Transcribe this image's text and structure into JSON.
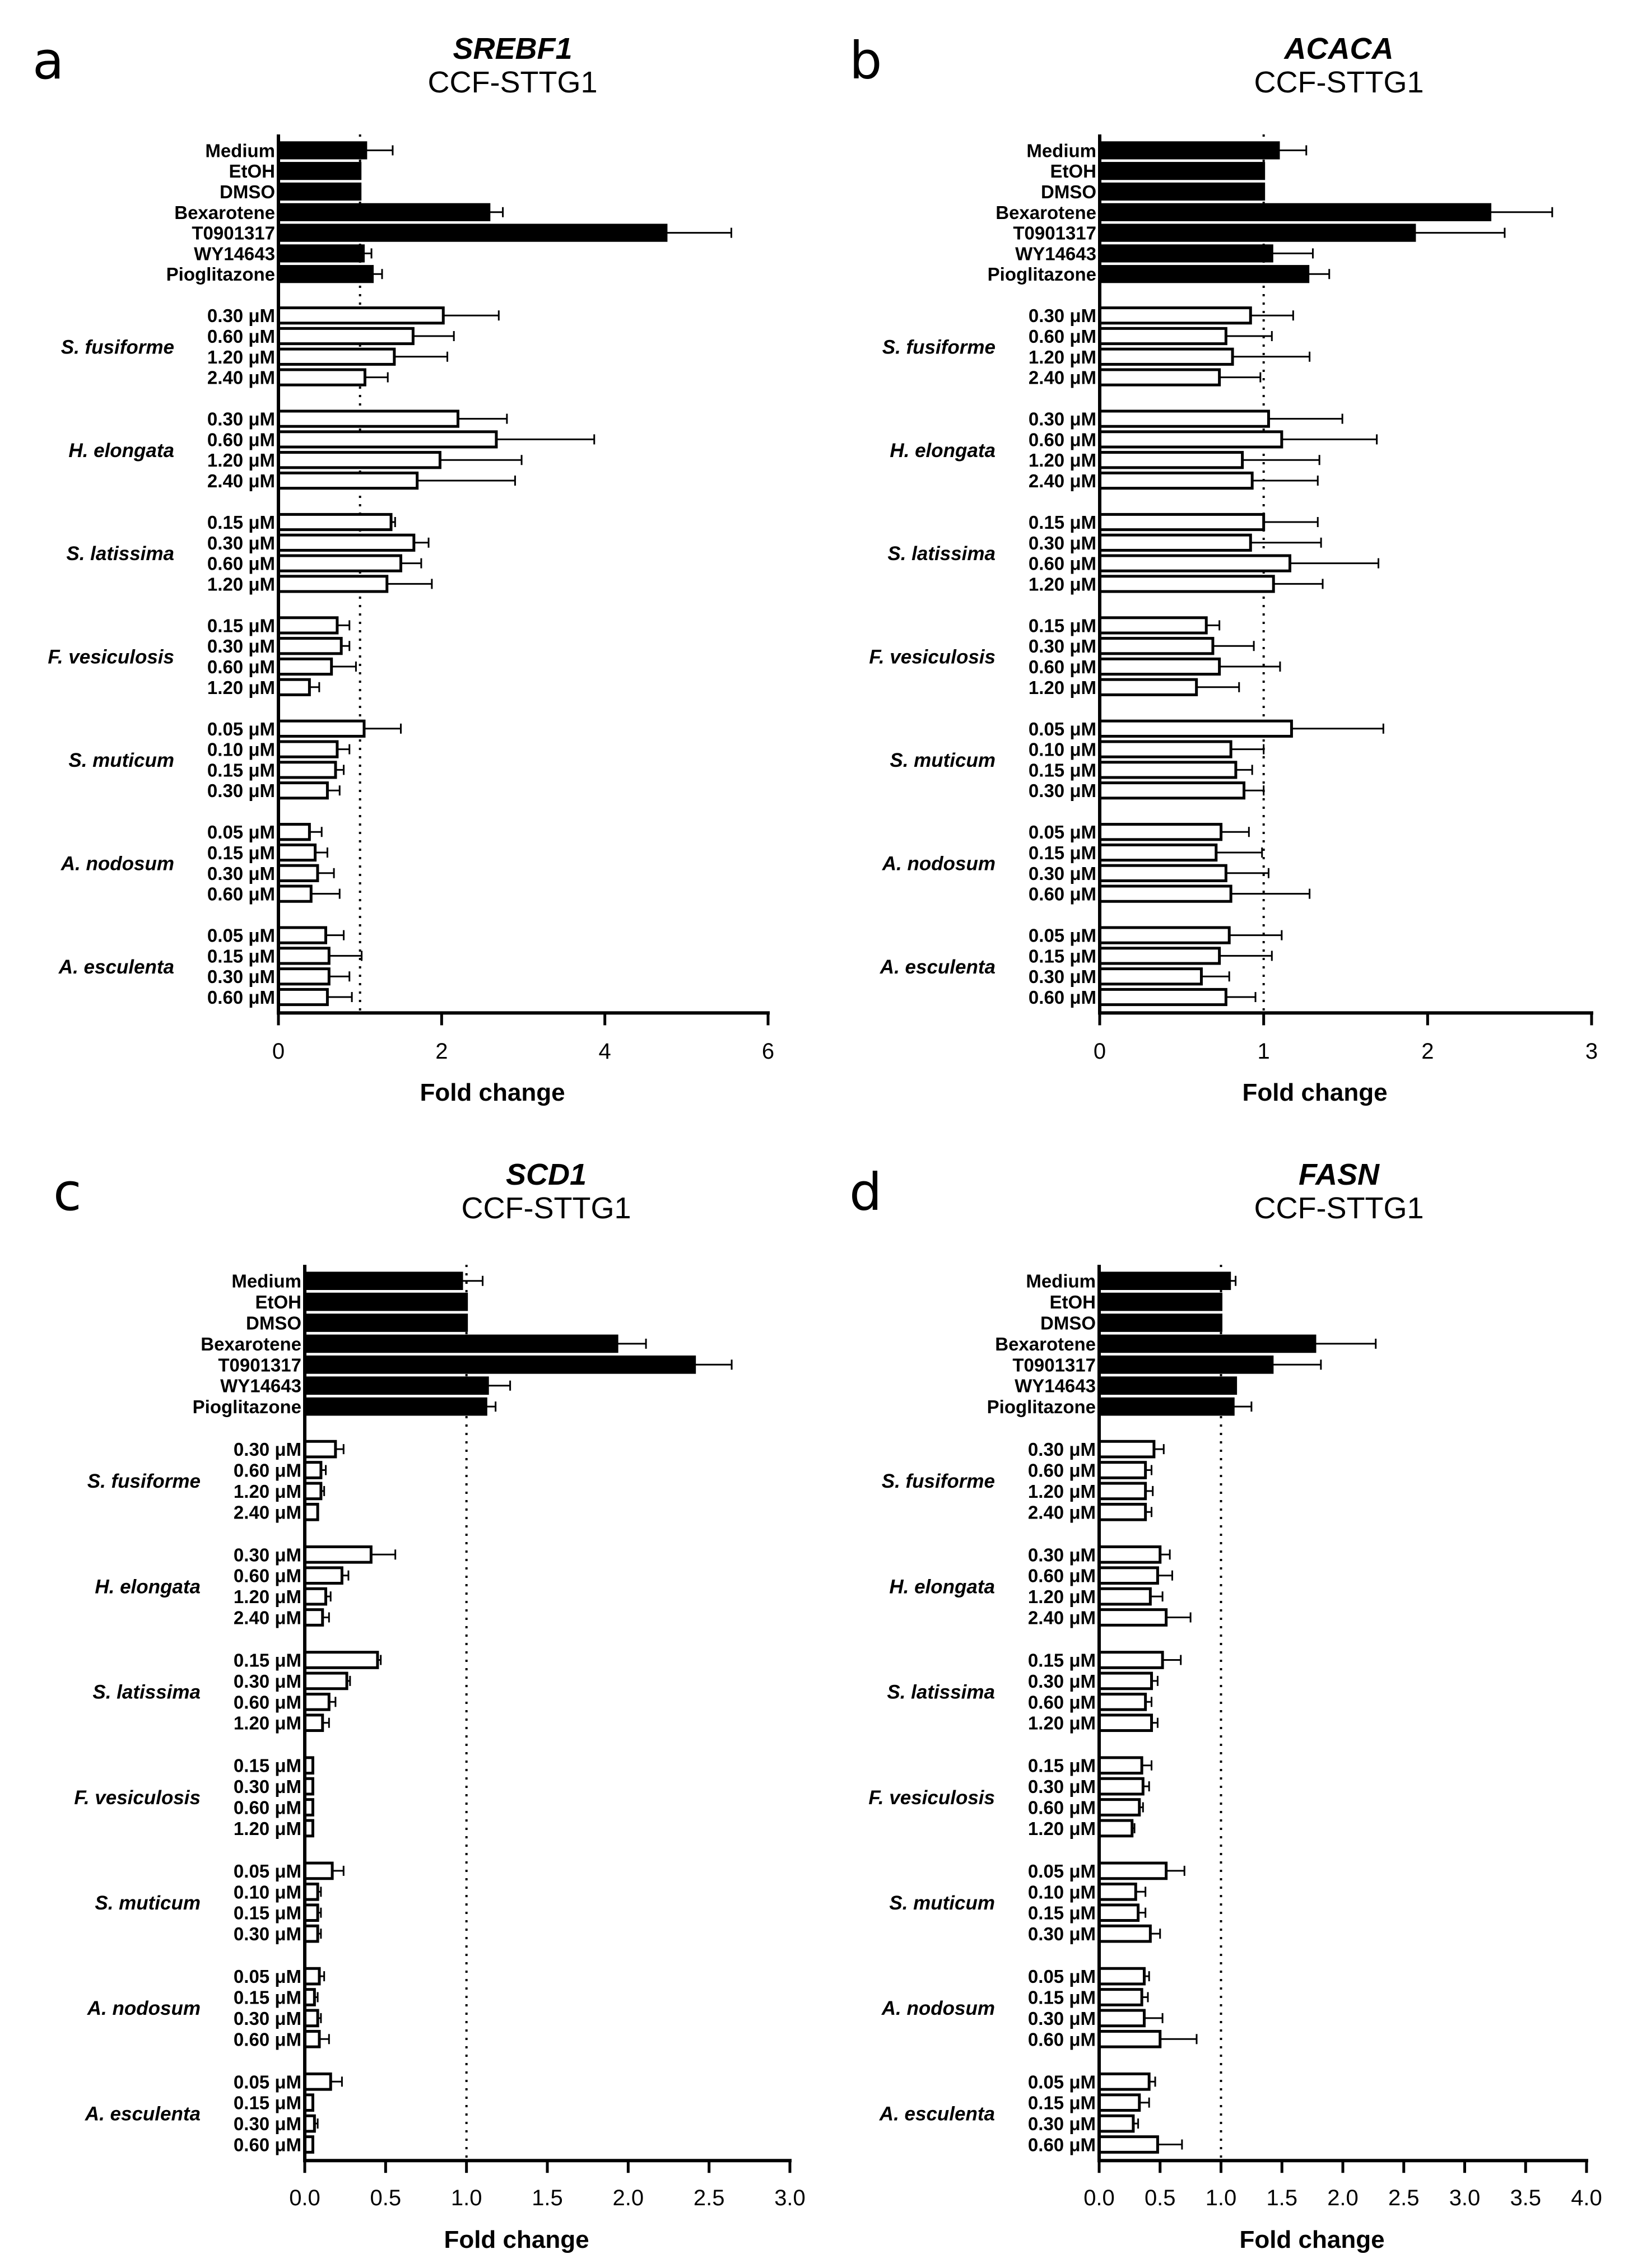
{
  "figure": {
    "cell_line": "CCF-STTG1",
    "treatment_labels": [
      "Medium",
      "EtOH",
      "DMSO",
      "Bexarotene",
      "T0901317",
      "WY14643",
      "Pioglitazone"
    ],
    "groups": [
      {
        "name": "S. fusiforme",
        "doses": [
          "0.30 μM",
          "0.60 μM",
          "1.20 μM",
          "2.40 μM"
        ]
      },
      {
        "name": "H. elongata",
        "doses": [
          "0.30 μM",
          "0.60 μM",
          "1.20 μM",
          "2.40 μM"
        ]
      },
      {
        "name": "S. latissima",
        "doses": [
          "0.15 μM",
          "0.30 μM",
          "0.60 μM",
          "1.20 μM"
        ]
      },
      {
        "name": "F. vesiculosis",
        "doses": [
          "0.15 μM",
          "0.30 μM",
          "0.60 μM",
          "1.20 μM"
        ]
      },
      {
        "name": "S. muticum",
        "doses": [
          "0.05 μM",
          "0.10 μM",
          "0.15 μM",
          "0.30 μM"
        ]
      },
      {
        "name": "A. nodosum",
        "doses": [
          "0.05 μM",
          "0.15 μM",
          "0.30 μM",
          "0.60 μM"
        ]
      },
      {
        "name": "A. esculenta",
        "doses": [
          "0.05 μM",
          "0.15 μM",
          "0.30 μM",
          "0.60 μM"
        ]
      }
    ],
    "colors": {
      "control_fill": "#000000",
      "treated_fill": "#ffffff",
      "stroke": "#000000"
    }
  },
  "chart_data": [
    {
      "panel": "a",
      "type": "bar",
      "orientation": "horizontal",
      "title": "SREBF1",
      "subtitle": "CCF-STTG1",
      "xlabel": "Fold change",
      "xlim": [
        0,
        6
      ],
      "xticks": [
        0,
        2,
        4,
        6
      ],
      "xtick_labels": [
        "0",
        "2",
        "4",
        "6"
      ],
      "reference_line": 1,
      "controls": {
        "values": [
          1.07,
          1.0,
          1.0,
          2.58,
          4.75,
          1.04,
          1.15
        ],
        "errors": [
          0.33,
          0.0,
          0.0,
          0.17,
          0.8,
          0.1,
          0.12
        ]
      },
      "groups": [
        {
          "values": [
            2.02,
            1.65,
            1.42,
            1.06
          ],
          "errors": [
            0.68,
            0.5,
            0.65,
            0.28
          ]
        },
        {
          "values": [
            2.2,
            2.67,
            1.98,
            1.7
          ],
          "errors": [
            0.6,
            1.2,
            1.0,
            1.2
          ]
        },
        {
          "values": [
            1.38,
            1.66,
            1.5,
            1.33
          ],
          "errors": [
            0.05,
            0.18,
            0.25,
            0.55
          ]
        },
        {
          "values": [
            0.72,
            0.77,
            0.65,
            0.38
          ],
          "errors": [
            0.15,
            0.1,
            0.3,
            0.12
          ]
        },
        {
          "values": [
            1.05,
            0.72,
            0.7,
            0.6
          ],
          "errors": [
            0.45,
            0.15,
            0.1,
            0.15
          ]
        },
        {
          "values": [
            0.38,
            0.45,
            0.48,
            0.4
          ],
          "errors": [
            0.15,
            0.15,
            0.2,
            0.35
          ]
        },
        {
          "values": [
            0.58,
            0.62,
            0.62,
            0.6
          ],
          "errors": [
            0.22,
            0.4,
            0.25,
            0.3
          ]
        }
      ]
    },
    {
      "panel": "b",
      "type": "bar",
      "orientation": "horizontal",
      "title": "ACACA",
      "subtitle": "CCF-STTG1",
      "xlabel": "Fold change",
      "xlim": [
        0,
        3
      ],
      "xticks": [
        0,
        1,
        2,
        3
      ],
      "xtick_labels": [
        "0",
        "1",
        "2",
        "3"
      ],
      "reference_line": 1,
      "controls": {
        "values": [
          1.09,
          1.0,
          1.0,
          2.38,
          1.92,
          1.05,
          1.27
        ],
        "errors": [
          0.17,
          0.0,
          0.0,
          0.38,
          0.55,
          0.25,
          0.13
        ]
      },
      "groups": [
        {
          "values": [
            0.92,
            0.77,
            0.81,
            0.73
          ],
          "errors": [
            0.26,
            0.28,
            0.47,
            0.25
          ]
        },
        {
          "values": [
            1.03,
            1.11,
            0.87,
            0.93
          ],
          "errors": [
            0.45,
            0.58,
            0.47,
            0.4
          ]
        },
        {
          "values": [
            1.0,
            0.92,
            1.16,
            1.06
          ],
          "errors": [
            0.33,
            0.43,
            0.54,
            0.3
          ]
        },
        {
          "values": [
            0.65,
            0.69,
            0.73,
            0.59
          ],
          "errors": [
            0.08,
            0.25,
            0.37,
            0.26
          ]
        },
        {
          "values": [
            1.17,
            0.8,
            0.83,
            0.88
          ],
          "errors": [
            0.56,
            0.2,
            0.1,
            0.12
          ]
        },
        {
          "values": [
            0.74,
            0.71,
            0.77,
            0.8
          ],
          "errors": [
            0.17,
            0.28,
            0.26,
            0.48
          ]
        },
        {
          "values": [
            0.79,
            0.73,
            0.62,
            0.77
          ],
          "errors": [
            0.32,
            0.32,
            0.17,
            0.18
          ]
        }
      ]
    },
    {
      "panel": "c",
      "type": "bar",
      "orientation": "horizontal",
      "title": "SCD1",
      "subtitle": "CCF-STTG1",
      "xlabel": "Fold change",
      "xlim": [
        0,
        3
      ],
      "xticks": [
        0,
        0.5,
        1,
        1.5,
        2,
        2.5,
        3
      ],
      "xtick_labels": [
        "0.0",
        "0.5",
        "1.0",
        "1.5",
        "2.0",
        "2.5",
        "3.0"
      ],
      "reference_line": 1,
      "controls": {
        "values": [
          0.97,
          1.0,
          1.0,
          1.93,
          2.41,
          1.13,
          1.12
        ],
        "errors": [
          0.13,
          0.0,
          0.0,
          0.18,
          0.23,
          0.14,
          0.06
        ]
      },
      "groups": [
        {
          "values": [
            0.19,
            0.1,
            0.1,
            0.08
          ],
          "errors": [
            0.05,
            0.03,
            0.02,
            0.0
          ]
        },
        {
          "values": [
            0.41,
            0.23,
            0.13,
            0.11
          ],
          "errors": [
            0.15,
            0.04,
            0.03,
            0.04
          ]
        },
        {
          "values": [
            0.45,
            0.26,
            0.15,
            0.11
          ],
          "errors": [
            0.02,
            0.02,
            0.04,
            0.04
          ]
        },
        {
          "values": [
            0.05,
            0.05,
            0.05,
            0.05
          ],
          "errors": [
            0.0,
            0.0,
            0.0,
            0.0
          ]
        },
        {
          "values": [
            0.17,
            0.08,
            0.08,
            0.08
          ],
          "errors": [
            0.07,
            0.02,
            0.02,
            0.02
          ]
        },
        {
          "values": [
            0.09,
            0.06,
            0.08,
            0.09
          ],
          "errors": [
            0.03,
            0.02,
            0.02,
            0.06
          ]
        },
        {
          "values": [
            0.16,
            0.05,
            0.06,
            0.05
          ],
          "errors": [
            0.07,
            0.0,
            0.02,
            0.0
          ]
        }
      ]
    },
    {
      "panel": "d",
      "type": "bar",
      "orientation": "horizontal",
      "title": "FASN",
      "subtitle": "CCF-STTG1",
      "xlabel": "Fold change",
      "xlim": [
        0,
        4
      ],
      "xticks": [
        0,
        0.5,
        1,
        1.5,
        2,
        2.5,
        3,
        3.5,
        4
      ],
      "xtick_labels": [
        "0.0",
        "0.5",
        "1.0",
        "1.5",
        "2.0",
        "2.5",
        "3.0",
        "3.5",
        "4.0"
      ],
      "reference_line": 1,
      "controls": {
        "values": [
          1.07,
          1.0,
          1.0,
          1.77,
          1.42,
          1.12,
          1.1
        ],
        "errors": [
          0.05,
          0.0,
          0.0,
          0.5,
          0.4,
          0.0,
          0.15
        ]
      },
      "groups": [
        {
          "values": [
            0.45,
            0.38,
            0.38,
            0.38
          ],
          "errors": [
            0.08,
            0.05,
            0.06,
            0.05
          ]
        },
        {
          "values": [
            0.5,
            0.48,
            0.42,
            0.55
          ],
          "errors": [
            0.08,
            0.12,
            0.1,
            0.2
          ]
        },
        {
          "values": [
            0.52,
            0.43,
            0.38,
            0.43
          ],
          "errors": [
            0.15,
            0.05,
            0.05,
            0.05
          ]
        },
        {
          "values": [
            0.35,
            0.36,
            0.33,
            0.27
          ],
          "errors": [
            0.08,
            0.05,
            0.03,
            0.02
          ]
        },
        {
          "values": [
            0.55,
            0.3,
            0.32,
            0.42
          ],
          "errors": [
            0.15,
            0.08,
            0.06,
            0.08
          ]
        },
        {
          "values": [
            0.37,
            0.35,
            0.37,
            0.5
          ],
          "errors": [
            0.04,
            0.05,
            0.15,
            0.3
          ]
        },
        {
          "values": [
            0.41,
            0.33,
            0.28,
            0.48
          ],
          "errors": [
            0.05,
            0.08,
            0.04,
            0.2
          ]
        }
      ]
    }
  ]
}
